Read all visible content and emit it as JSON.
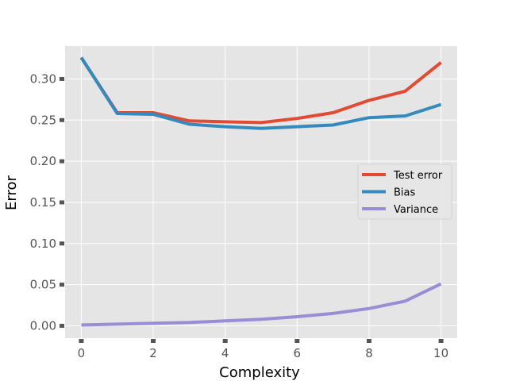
{
  "chart_data": {
    "type": "line",
    "title": "",
    "xlabel": "Complexity",
    "ylabel": "Error",
    "xlim": [
      -0.45,
      10.45
    ],
    "ylim": [
      -0.015,
      0.34
    ],
    "xticks": [
      0,
      2,
      4,
      6,
      8,
      10
    ],
    "xtick_labels": [
      "0",
      "2",
      "4",
      "6",
      "8",
      "10"
    ],
    "yticks": [
      0.0,
      0.05,
      0.1,
      0.15,
      0.2,
      0.25,
      0.3
    ],
    "ytick_labels": [
      "0.00",
      "0.05",
      "0.10",
      "0.15",
      "0.20",
      "0.25",
      "0.30"
    ],
    "grid": true,
    "legend_position": "center-right",
    "x": [
      0,
      1,
      2,
      3,
      4,
      5,
      6,
      7,
      8,
      9,
      10
    ],
    "series": [
      {
        "name": "Test error",
        "color": "#E24A33",
        "values": [
          0.326,
          0.259,
          0.259,
          0.249,
          0.248,
          0.247,
          0.252,
          0.259,
          0.274,
          0.285,
          0.32
        ]
      },
      {
        "name": "Bias",
        "color": "#348ABD",
        "values": [
          0.326,
          0.258,
          0.257,
          0.245,
          0.242,
          0.24,
          0.242,
          0.244,
          0.253,
          0.255,
          0.269
        ]
      },
      {
        "name": "Variance",
        "color": "#988ED5",
        "values": [
          0.001,
          0.002,
          0.003,
          0.004,
          0.006,
          0.008,
          0.011,
          0.015,
          0.021,
          0.03,
          0.051
        ]
      }
    ]
  }
}
